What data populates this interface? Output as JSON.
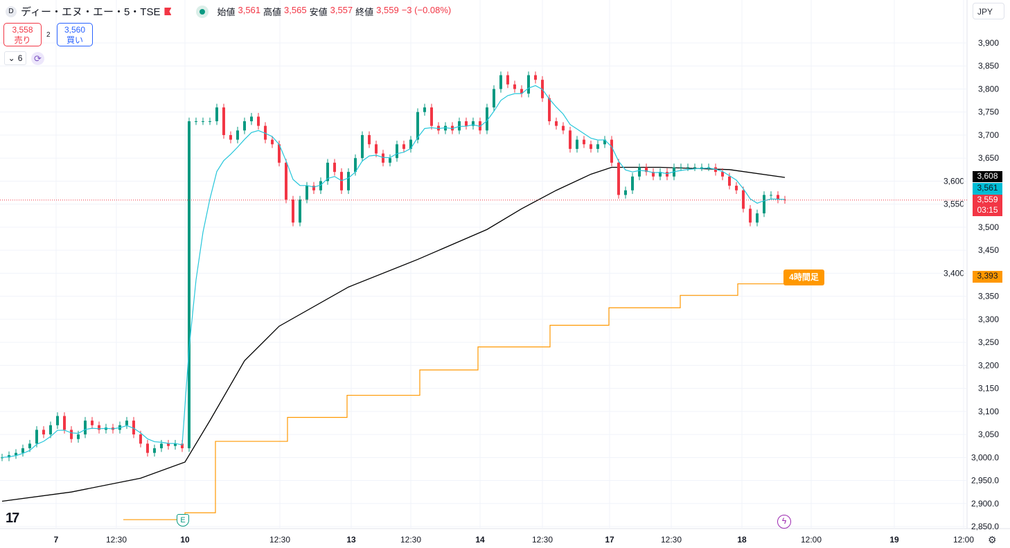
{
  "header": {
    "symbol": "ディー・エヌ・エー・5・TSE",
    "logo": "D",
    "open_label": "始値",
    "open": "3,561",
    "high_label": "高値",
    "high": "3,565",
    "low_label": "安値",
    "low": "3,557",
    "close_label": "終値",
    "close": "3,559",
    "change": "−3 (−0.08%)"
  },
  "trade": {
    "sell_price": "3,558",
    "sell_label": "売り",
    "spread": "2",
    "buy_price": "3,560",
    "buy_label": "買い"
  },
  "indicators": {
    "count": "6"
  },
  "currency": "JPY",
  "price_tags": {
    "ma_long": "3,608",
    "ma_short": "3,561",
    "last": "3,559",
    "countdown": "03:15",
    "step": "3,393",
    "step_label": "4時間足"
  },
  "colors": {
    "up": "#089981",
    "down": "#f23645",
    "ma_short": "#26c6da",
    "ma_long": "#000000",
    "step": "#ff9800"
  },
  "chart_data": {
    "type": "candlestick",
    "y_ticks": [
      "3,900",
      "3,850",
      "3,800",
      "3,750",
      "3,700",
      "3,650",
      "3,600",
      "3,550",
      "3,500",
      "3,450",
      "3,400",
      "3,350",
      "3,300",
      "3,250",
      "3,200",
      "3,150",
      "3,100",
      "3,050",
      "3,000.0",
      "2,950.0",
      "2,900.0",
      "2,850.0"
    ],
    "y_tick_values": [
      3900,
      3850,
      3800,
      3750,
      3700,
      3650,
      3600,
      3550,
      3500,
      3450,
      3400,
      3350,
      3300,
      3250,
      3200,
      3150,
      3100,
      3050,
      3000,
      2950,
      2900,
      2850
    ],
    "ylim": [
      2835,
      3930
    ],
    "x_ticks": [
      {
        "label": "7",
        "i": 7.8
      },
      {
        "label": "12:30",
        "i": 16.5
      },
      {
        "label": "10",
        "i": 26.4
      },
      {
        "label": "12:30",
        "i": 40.1
      },
      {
        "label": "13",
        "i": 50.4
      },
      {
        "label": "12:30",
        "i": 59
      },
      {
        "label": "14",
        "i": 69
      },
      {
        "label": "12:30",
        "i": 78
      },
      {
        "label": "17",
        "i": 87.7
      },
      {
        "label": "12:30",
        "i": 96.6
      },
      {
        "label": "18",
        "i": 106.8
      },
      {
        "label": "12:00",
        "i": 116.8
      },
      {
        "label": "19",
        "i": 128.8
      },
      {
        "label": "12:00",
        "i": 138.8
      }
    ],
    "closes": [
      3000,
      3005,
      3010,
      3020,
      3030,
      3060,
      3050,
      3070,
      3090,
      3060,
      3040,
      3050,
      3080,
      3070,
      3060,
      3065,
      3060,
      3070,
      3080,
      3050,
      3030,
      3010,
      3020,
      3030,
      3025,
      3030,
      3020,
      3730,
      3730,
      3730,
      3730,
      3760,
      3700,
      3690,
      3710,
      3730,
      3740,
      3720,
      3690,
      3680,
      3640,
      3560,
      3510,
      3560,
      3590,
      3580,
      3600,
      3640,
      3620,
      3580,
      3620,
      3650,
      3700,
      3680,
      3660,
      3640,
      3650,
      3680,
      3670,
      3690,
      3750,
      3760,
      3720,
      3710,
      3720,
      3710,
      3730,
      3720,
      3730,
      3710,
      3760,
      3800,
      3830,
      3810,
      3800,
      3790,
      3830,
      3820,
      3780,
      3730,
      3720,
      3710,
      3670,
      3690,
      3680,
      3670,
      3680,
      3690,
      3640,
      3570,
      3580,
      3610,
      3630,
      3620,
      3610,
      3620,
      3610,
      3630,
      3630,
      3630,
      3630,
      3630,
      3630,
      3620,
      3610,
      3590,
      3580,
      3540,
      3510,
      3530,
      3570,
      3570,
      3560,
      3559
    ],
    "ma_long": [
      [
        0,
        2905
      ],
      [
        10,
        2925
      ],
      [
        20,
        2955
      ],
      [
        26.4,
        2990
      ],
      [
        30,
        3080
      ],
      [
        35,
        3210
      ],
      [
        40,
        3285
      ],
      [
        50,
        3370
      ],
      [
        60,
        3430
      ],
      [
        70,
        3495
      ],
      [
        75,
        3540
      ],
      [
        80,
        3580
      ],
      [
        85,
        3615
      ],
      [
        88,
        3630
      ],
      [
        95,
        3630
      ],
      [
        105,
        3625
      ],
      [
        113,
        3608
      ]
    ],
    "step_line": [
      [
        17.5,
        2865
      ],
      [
        26.4,
        2880
      ],
      [
        30.8,
        3035
      ],
      [
        41.2,
        3087
      ],
      [
        49.8,
        3135
      ],
      [
        60.3,
        3190
      ],
      [
        68.7,
        3240
      ],
      [
        79.1,
        3287
      ],
      [
        87.6,
        3325
      ],
      [
        97.9,
        3352
      ],
      [
        106.2,
        3377
      ],
      [
        113,
        3393
      ]
    ]
  }
}
